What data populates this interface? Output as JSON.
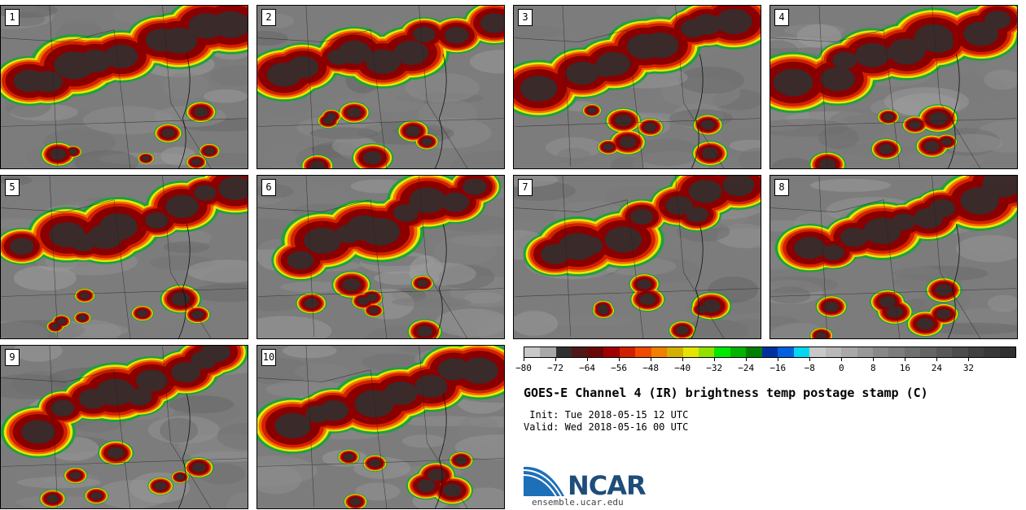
{
  "panels": [
    {
      "label": "1"
    },
    {
      "label": "2"
    },
    {
      "label": "3"
    },
    {
      "label": "4"
    },
    {
      "label": "5"
    },
    {
      "label": "6"
    },
    {
      "label": "7"
    },
    {
      "label": "8"
    },
    {
      "label": "9"
    },
    {
      "label": "10"
    }
  ],
  "colorbar": {
    "colors": [
      "#c8c8c8",
      "#a8a8a8",
      "#303030",
      "#501818",
      "#6a0808",
      "#a00000",
      "#d02000",
      "#f04a00",
      "#f08000",
      "#d4b000",
      "#e4e400",
      "#90e000",
      "#00e800",
      "#00b400",
      "#008000",
      "#0030a0",
      "#0060e0",
      "#00d8f0",
      "#c8c8c8",
      "#b8b8b8",
      "#a8a8a8",
      "#989898",
      "#888888",
      "#7c7c7c",
      "#707070",
      "#646464",
      "#585858",
      "#4c4c4c",
      "#404040",
      "#383838",
      "#303030"
    ],
    "tick_labels": [
      "−80",
      "−72",
      "−64",
      "−56",
      "−48",
      "−40",
      "−32",
      "−24",
      "−16",
      "−8",
      "0",
      "8",
      "16",
      "24",
      "32"
    ]
  },
  "title": "GOES-E Channel 4 (IR) brightness temp postage stamp (C)",
  "init": " Init: Tue 2018-05-15 12 UTC",
  "valid": "Valid: Wed 2018-05-16 00 UTC",
  "logo": {
    "name": "NCAR",
    "url": "ensemble.ucar.edu"
  }
}
